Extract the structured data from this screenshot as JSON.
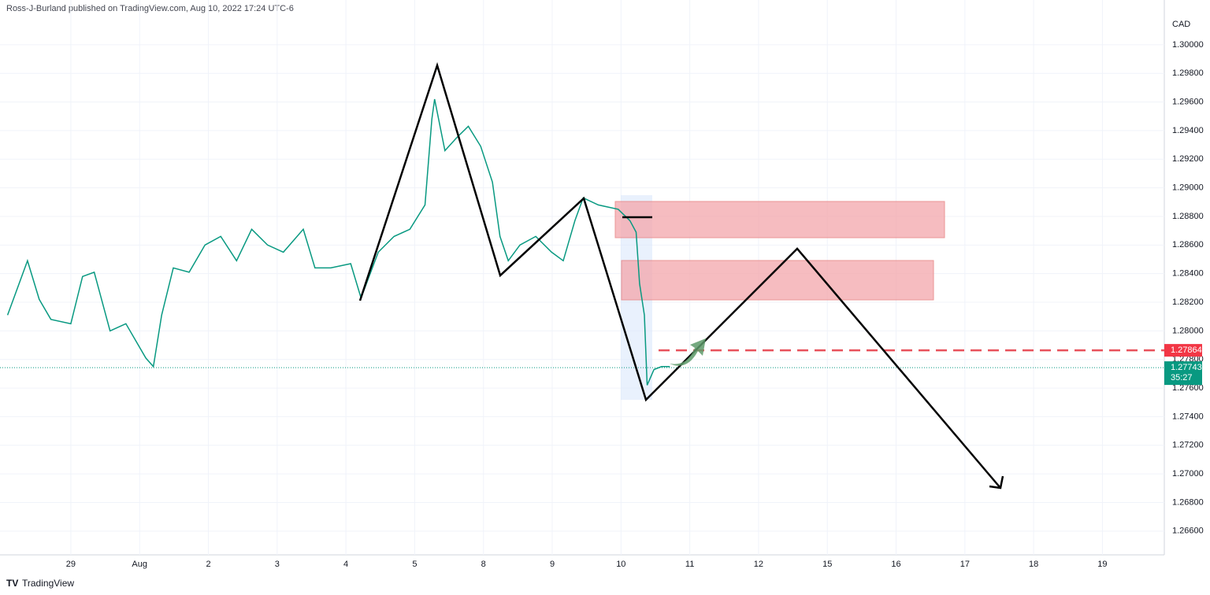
{
  "header": "Ross-J-Burland published on TradingView.com, Aug 10, 2022 17:24 UTC-6",
  "footer": "TradingView",
  "chart_data": {
    "type": "line",
    "currency": "CAD",
    "color": "#089981",
    "grid": true,
    "xlim": [
      -1.03,
      15.9
    ],
    "ylim": [
      1.26434,
      1.30313
    ],
    "xticks": [
      {
        "value": 0,
        "label": "29"
      },
      {
        "value": 1,
        "label": "Aug"
      },
      {
        "value": 2,
        "label": "2"
      },
      {
        "value": 3,
        "label": "3"
      },
      {
        "value": 4,
        "label": "4"
      },
      {
        "value": 5,
        "label": "5"
      },
      {
        "value": 6,
        "label": "8"
      },
      {
        "value": 7,
        "label": "9"
      },
      {
        "value": 8,
        "label": "10"
      },
      {
        "value": 9,
        "label": "11"
      },
      {
        "value": 10,
        "label": "12"
      },
      {
        "value": 11,
        "label": "15"
      },
      {
        "value": 12,
        "label": "16"
      },
      {
        "value": 13,
        "label": "17"
      },
      {
        "value": 14,
        "label": "18"
      },
      {
        "value": 15,
        "label": "19"
      }
    ],
    "yticks": [
      {
        "value": 1.266,
        "label": "1.26600"
      },
      {
        "value": 1.268,
        "label": "1.26800"
      },
      {
        "value": 1.27,
        "label": "1.27000"
      },
      {
        "value": 1.272,
        "label": "1.27200"
      },
      {
        "value": 1.274,
        "label": "1.27400"
      },
      {
        "value": 1.276,
        "label": "1.27600"
      },
      {
        "value": 1.278,
        "label": "1.27800"
      },
      {
        "value": 1.28,
        "label": "1.28000"
      },
      {
        "value": 1.282,
        "label": "1.28200"
      },
      {
        "value": 1.284,
        "label": "1.28400"
      },
      {
        "value": 1.286,
        "label": "1.28600"
      },
      {
        "value": 1.288,
        "label": "1.28800"
      },
      {
        "value": 1.29,
        "label": "1.29000"
      },
      {
        "value": 1.292,
        "label": "1.29200"
      },
      {
        "value": 1.294,
        "label": "1.29400"
      },
      {
        "value": 1.296,
        "label": "1.29600"
      },
      {
        "value": 1.298,
        "label": "1.29800"
      },
      {
        "value": 1.3,
        "label": "1.30000"
      }
    ],
    "x": [
      -0.92,
      -0.63,
      -0.46,
      -0.29,
      0,
      0.17,
      0.34,
      0.57,
      0.8,
      1.09,
      1.2,
      1.32,
      1.49,
      1.72,
      1.95,
      2.18,
      2.41,
      2.63,
      2.86,
      3.09,
      3.38,
      3.55,
      3.78,
      4.07,
      4.22,
      4.47,
      4.7,
      4.93,
      5.15,
      5.25,
      5.29,
      5.44,
      5.61,
      5.78,
      5.96,
      6.13,
      6.24,
      6.36,
      6.53,
      6.76,
      6.99,
      7.16,
      7.33,
      7.45,
      7.67,
      7.96,
      8.13,
      8.22,
      8.27,
      8.34,
      8.38,
      8.48,
      8.59,
      8.71
    ],
    "values": [
      1.2811,
      1.2849,
      1.2822,
      1.2808,
      1.2805,
      1.2838,
      1.2841,
      1.28,
      1.2805,
      1.2781,
      1.2775,
      1.2811,
      1.2844,
      1.2841,
      1.286,
      1.2866,
      1.2849,
      1.2871,
      1.286,
      1.2855,
      1.2871,
      1.2844,
      1.2844,
      1.2847,
      1.2823,
      1.2855,
      1.2866,
      1.2871,
      1.2888,
      1.2948,
      1.2962,
      1.2926,
      1.2935,
      1.2943,
      1.2929,
      1.2904,
      1.2866,
      1.2849,
      1.286,
      1.2866,
      1.2855,
      1.2849,
      1.2877,
      1.2893,
      1.2888,
      1.2885,
      1.2877,
      1.2869,
      1.2833,
      1.2811,
      1.2762,
      1.2773,
      1.2775,
      1.2775
    ],
    "marked_level": {
      "value": 1.27864,
      "label": "1.27864"
    },
    "last_price": {
      "value": 1.27743,
      "label": "1.27743",
      "countdown": "35:27"
    }
  }
}
